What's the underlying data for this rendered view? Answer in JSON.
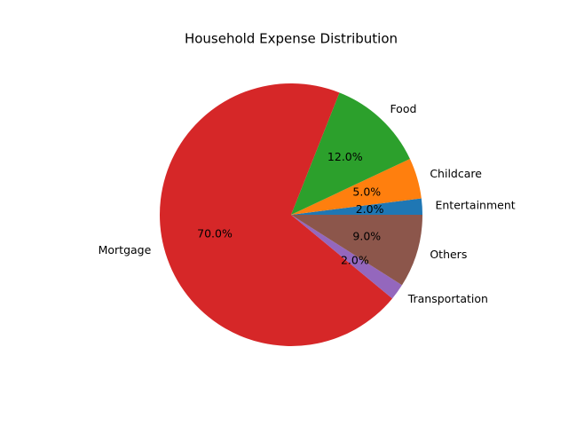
{
  "chart_data": {
    "type": "pie",
    "title": "Household Expense Distribution",
    "categories": [
      "Entertainment",
      "Childcare",
      "Food",
      "Mortgage",
      "Transportation",
      "Others"
    ],
    "values": [
      2,
      5,
      12,
      70,
      2,
      9
    ],
    "value_labels": [
      "2.0%",
      "5.0%",
      "12.0%",
      "70.0%",
      "2.0%",
      "9.0%"
    ],
    "colors": [
      "#1f77b4",
      "#ff7f0e",
      "#2ca02c",
      "#d62728",
      "#9467bd",
      "#8c564b"
    ]
  }
}
